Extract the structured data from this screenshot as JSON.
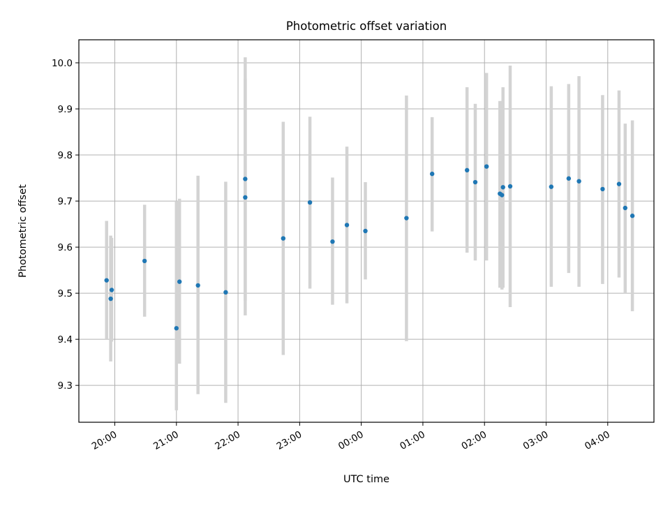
{
  "chart_data": {
    "type": "scatter",
    "title": "Photometric offset variation",
    "xlabel": "UTC time",
    "ylabel": "Photometric offset",
    "xlim": [
      "19:25",
      "28:45"
    ],
    "ylim": [
      9.22,
      10.05
    ],
    "x_ticks": [
      {
        "value": "20:00",
        "label": "20:00"
      },
      {
        "value": "21:00",
        "label": "21:00"
      },
      {
        "value": "22:00",
        "label": "22:00"
      },
      {
        "value": "23:00",
        "label": "23:00"
      },
      {
        "value": "24:00",
        "label": "00:00"
      },
      {
        "value": "25:00",
        "label": "01:00"
      },
      {
        "value": "26:00",
        "label": "02:00"
      },
      {
        "value": "27:00",
        "label": "03:00"
      },
      {
        "value": "28:00",
        "label": "04:00"
      }
    ],
    "y_ticks": [
      "9.3",
      "9.4",
      "9.5",
      "9.6",
      "9.7",
      "9.8",
      "9.9",
      "10.0"
    ],
    "grid": true,
    "marker_color": "#1f77b4",
    "errorbar_color": "#d3d3d3",
    "points": [
      {
        "time": "19:52",
        "y": 9.528,
        "low": 9.4,
        "high": 9.657
      },
      {
        "time": "19:56",
        "y": 9.488,
        "low": 9.352,
        "high": 9.625
      },
      {
        "time": "19:57",
        "y": 9.507,
        "low": 9.395,
        "high": 9.62
      },
      {
        "time": "20:29",
        "y": 9.57,
        "low": 9.449,
        "high": 9.692
      },
      {
        "time": "21:00",
        "y": 9.424,
        "low": 9.246,
        "high": 9.7
      },
      {
        "time": "21:03",
        "y": 9.525,
        "low": 9.347,
        "high": 9.705
      },
      {
        "time": "21:21",
        "y": 9.517,
        "low": 9.281,
        "high": 9.755
      },
      {
        "time": "21:48",
        "y": 9.502,
        "low": 9.262,
        "high": 9.742
      },
      {
        "time": "22:07",
        "y": 9.748,
        "low": 9.484,
        "high": 10.012
      },
      {
        "time": "22:07",
        "y": 9.708,
        "low": 9.452,
        "high": 9.965
      },
      {
        "time": "22:44",
        "y": 9.619,
        "low": 9.366,
        "high": 9.872
      },
      {
        "time": "23:10",
        "y": 9.697,
        "low": 9.51,
        "high": 9.883
      },
      {
        "time": "23:32",
        "y": 9.612,
        "low": 9.475,
        "high": 9.751
      },
      {
        "time": "23:46",
        "y": 9.648,
        "low": 9.478,
        "high": 9.818
      },
      {
        "time": "24:04",
        "y": 9.635,
        "low": 9.53,
        "high": 9.741
      },
      {
        "time": "24:44",
        "y": 9.663,
        "low": 9.396,
        "high": 9.929
      },
      {
        "time": "25:09",
        "y": 9.759,
        "low": 9.634,
        "high": 9.882
      },
      {
        "time": "25:43",
        "y": 9.767,
        "low": 9.588,
        "high": 9.947
      },
      {
        "time": "25:51",
        "y": 9.741,
        "low": 9.571,
        "high": 9.911
      },
      {
        "time": "26:02",
        "y": 9.775,
        "low": 9.571,
        "high": 9.978
      },
      {
        "time": "26:15",
        "y": 9.716,
        "low": 9.512,
        "high": 9.917
      },
      {
        "time": "26:17",
        "y": 9.713,
        "low": 9.508,
        "high": 9.917
      },
      {
        "time": "26:18",
        "y": 9.73,
        "low": 9.512,
        "high": 9.947
      },
      {
        "time": "26:25",
        "y": 9.732,
        "low": 9.47,
        "high": 9.994
      },
      {
        "time": "27:05",
        "y": 9.731,
        "low": 9.514,
        "high": 9.949
      },
      {
        "time": "27:22",
        "y": 9.749,
        "low": 9.544,
        "high": 9.954
      },
      {
        "time": "27:32",
        "y": 9.743,
        "low": 9.514,
        "high": 9.971
      },
      {
        "time": "27:55",
        "y": 9.726,
        "low": 9.52,
        "high": 9.93
      },
      {
        "time": "28:11",
        "y": 9.737,
        "low": 9.534,
        "high": 9.94
      },
      {
        "time": "28:17",
        "y": 9.685,
        "low": 9.5,
        "high": 9.868
      },
      {
        "time": "28:24",
        "y": 9.668,
        "low": 9.461,
        "high": 9.875
      }
    ]
  }
}
